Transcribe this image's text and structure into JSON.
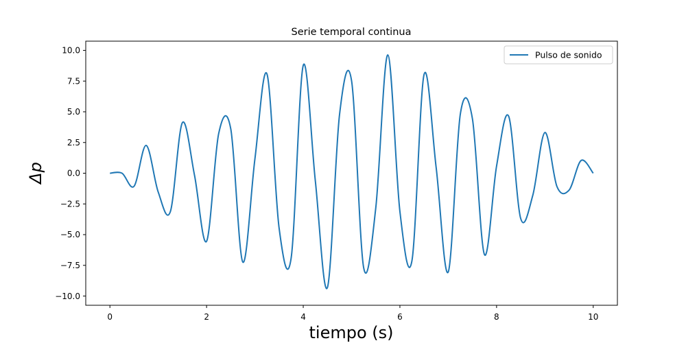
{
  "chart_data": {
    "type": "line",
    "title": "Serie temporal continua",
    "xlabel": "tiempo (s)",
    "ylabel": "Δp",
    "xlim": [
      -0.5,
      10.5
    ],
    "ylim": [
      -10.75,
      10.75
    ],
    "x_ticks": [
      0,
      2,
      4,
      6,
      8,
      10
    ],
    "x_tick_labels": [
      "0",
      "2",
      "4",
      "6",
      "8",
      "10"
    ],
    "y_ticks": [
      -10.0,
      -7.5,
      -5.0,
      -2.5,
      0.0,
      2.5,
      5.0,
      7.5,
      10.0
    ],
    "y_tick_labels": [
      "−10.0",
      "−7.5",
      "−5.0",
      "−2.5",
      "0.0",
      "2.5",
      "5.0",
      "7.5",
      "10.0"
    ],
    "grid": false,
    "legend_position": "top-right",
    "line_color": "#1f77b4",
    "series": [
      {
        "name": "Pulso de sonido",
        "x": [
          0,
          0.25,
          0.5,
          0.75,
          1.0,
          1.25,
          1.5,
          1.75,
          2.0,
          2.25,
          2.5,
          2.75,
          3.0,
          3.25,
          3.5,
          3.75,
          4.0,
          4.25,
          4.5,
          4.75,
          5.0,
          5.25,
          5.5,
          5.75,
          6.0,
          6.25,
          6.5,
          6.75,
          7.0,
          7.25,
          7.5,
          7.75,
          8.0,
          8.25,
          8.5,
          8.75,
          9.0,
          9.25,
          9.5,
          9.75,
          10.0
        ],
        "y": [
          0.0,
          0.0,
          -1.06,
          2.26,
          -1.54,
          -3.13,
          4.12,
          -0.16,
          -5.54,
          3.22,
          3.62,
          -7.24,
          1.16,
          8.07,
          -4.45,
          -6.9,
          8.78,
          -0.62,
          -9.31,
          4.74,
          7.52,
          -7.69,
          -2.85,
          9.63,
          -3.11,
          -7.1,
          8.04,
          0.46,
          -8.04,
          4.81,
          4.44,
          -6.63,
          0.58,
          4.64,
          -3.7,
          -1.79,
          3.31,
          -1.09,
          -1.38,
          1.04,
          0.0
        ]
      }
    ]
  }
}
